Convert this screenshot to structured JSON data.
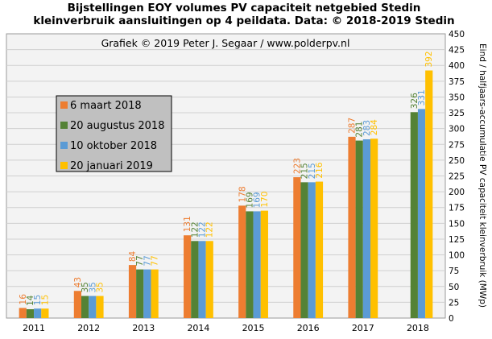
{
  "chart_data": {
    "type": "bar",
    "title": [
      "Bijstellingen  EOY volumes PV capaciteit netgebied Stedin",
      "kleinverbruik  aansluitingen  op 4 peildata. Data: © 2018-2019  Stedin"
    ],
    "credit": "Grafiek  © 2019  Peter J. Segaar / www.polderpv.nl",
    "ylabel": "Eind / halfjaars-accumulatie PV capaciteit kleinverbruik (MWp)",
    "categories": [
      "2011",
      "2012",
      "2013",
      "2014",
      "2015",
      "2016",
      "2017",
      "2018"
    ],
    "ylim": [
      0,
      450
    ],
    "yticks": [
      "0",
      "25",
      "50",
      "75",
      "100",
      "125",
      "150",
      "175",
      "200",
      "225",
      "250",
      "275",
      "300",
      "325",
      "350",
      "375",
      "400",
      "425",
      "450"
    ],
    "grid": true,
    "legend_position": "left",
    "series": [
      {
        "name": "6 maart 2018",
        "color": "#ed7d31",
        "values": [
          16,
          43,
          84,
          131,
          178,
          223,
          287,
          null
        ]
      },
      {
        "name": "20 augustus 2018",
        "color": "#548235",
        "values": [
          14,
          35,
          77,
          122,
          169,
          215,
          281,
          326
        ]
      },
      {
        "name": "10 oktober 2018",
        "color": "#5b9bd5",
        "values": [
          15,
          35,
          77,
          122,
          169,
          215,
          283,
          331
        ]
      },
      {
        "name": "20 januari 2019",
        "color": "#ffc000",
        "values": [
          15,
          35,
          77,
          122,
          170,
          216,
          284,
          392
        ]
      }
    ]
  }
}
